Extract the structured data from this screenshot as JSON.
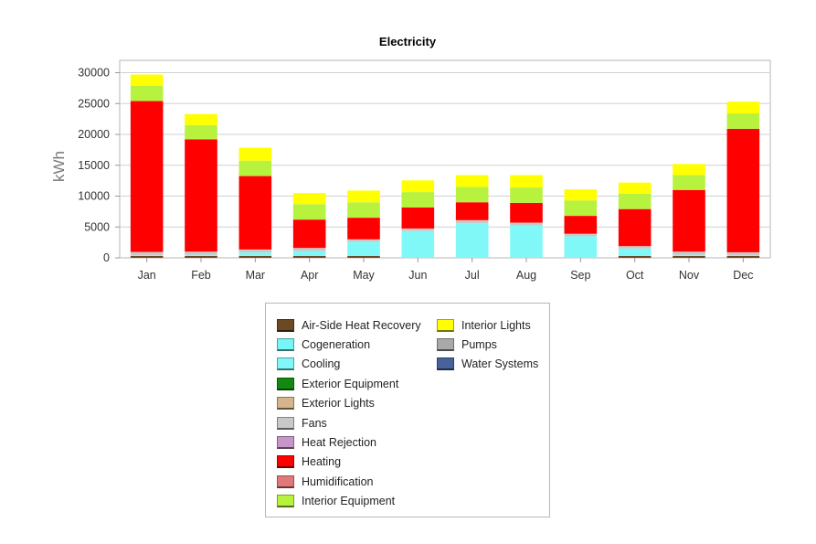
{
  "chart_data": {
    "type": "bar",
    "stacked": true,
    "title": "Electricity",
    "ylabel": "kWh",
    "xlabel": "",
    "ylim": [
      0,
      32000
    ],
    "yticks": [
      0,
      5000,
      10000,
      15000,
      20000,
      25000,
      30000
    ],
    "grid": true,
    "legend_position": "bottom",
    "categories": [
      "Jan",
      "Feb",
      "Mar",
      "Apr",
      "May",
      "Jun",
      "Jul",
      "Aug",
      "Sep",
      "Oct",
      "Nov",
      "Dec"
    ],
    "series": [
      {
        "name": "Air-Side Heat Recovery",
        "color": "#6b4a23",
        "values": [
          300,
          300,
          300,
          300,
          300,
          0,
          0,
          0,
          0,
          300,
          300,
          300
        ]
      },
      {
        "name": "Cogeneration",
        "color": "#78f5f5",
        "values": [
          0,
          0,
          0,
          0,
          0,
          0,
          0,
          0,
          0,
          0,
          0,
          0
        ]
      },
      {
        "name": "Cooling",
        "color": "#80f8f8",
        "values": [
          150,
          200,
          550,
          800,
          2300,
          4350,
          5600,
          5200,
          3500,
          1200,
          200,
          100
        ]
      },
      {
        "name": "Exterior Equipment",
        "color": "#128a12",
        "values": [
          0,
          0,
          0,
          0,
          0,
          0,
          0,
          0,
          0,
          0,
          0,
          0
        ]
      },
      {
        "name": "Exterior Lights",
        "color": "#d6b48c",
        "values": [
          0,
          0,
          0,
          0,
          0,
          0,
          0,
          0,
          0,
          0,
          0,
          0
        ]
      },
      {
        "name": "Fans",
        "color": "#c8c8c8",
        "values": [
          500,
          500,
          500,
          500,
          400,
          400,
          500,
          500,
          400,
          400,
          500,
          500
        ]
      },
      {
        "name": "Heat Rejection",
        "color": "#c696c9",
        "values": [
          0,
          0,
          0,
          0,
          0,
          0,
          0,
          0,
          0,
          0,
          0,
          0
        ]
      },
      {
        "name": "Heating",
        "color": "#ff0000",
        "values": [
          24450,
          18200,
          11900,
          4600,
          3500,
          3400,
          2900,
          3200,
          2900,
          6000,
          10000,
          20000
        ]
      },
      {
        "name": "Humidification",
        "color": "#e07a7a",
        "values": [
          0,
          0,
          0,
          0,
          0,
          0,
          0,
          0,
          0,
          0,
          0,
          0
        ]
      },
      {
        "name": "Interior Equipment",
        "color": "#b7f23e",
        "values": [
          2500,
          2300,
          2500,
          2500,
          2500,
          2500,
          2500,
          2500,
          2500,
          2500,
          2400,
          2500
        ]
      },
      {
        "name": "Interior Lights",
        "color": "#ffff00",
        "values": [
          1800,
          1800,
          2100,
          1800,
          1900,
          1900,
          1900,
          2000,
          1800,
          1800,
          1800,
          1900
        ]
      },
      {
        "name": "Pumps",
        "color": "#a9a9a9",
        "values": [
          0,
          0,
          0,
          0,
          0,
          0,
          0,
          0,
          0,
          0,
          0,
          0
        ]
      },
      {
        "name": "Water Systems",
        "color": "#48629a",
        "values": [
          0,
          0,
          0,
          0,
          0,
          0,
          0,
          0,
          0,
          0,
          0,
          0
        ]
      }
    ]
  }
}
